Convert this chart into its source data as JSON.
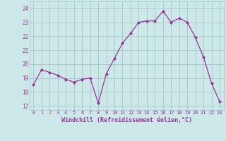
{
  "x": [
    0,
    1,
    2,
    3,
    4,
    5,
    6,
    7,
    8,
    9,
    10,
    11,
    12,
    13,
    14,
    15,
    16,
    17,
    18,
    19,
    20,
    21,
    22,
    23
  ],
  "y": [
    18.5,
    19.6,
    19.4,
    19.2,
    18.9,
    18.7,
    18.9,
    19.0,
    17.2,
    19.3,
    20.4,
    21.5,
    22.2,
    23.0,
    23.1,
    23.1,
    23.8,
    23.0,
    23.3,
    23.0,
    21.9,
    20.5,
    18.6,
    17.3
  ],
  "line_color": "#993399",
  "marker": "D",
  "marker_size": 2.0,
  "bg_color": "#cce8e8",
  "grid_color": "#aacccc",
  "xlabel": "Windchill (Refroidissement éolien,°C)",
  "xlabel_color": "#993399",
  "tick_color": "#993399",
  "yticks": [
    17,
    18,
    19,
    20,
    21,
    22,
    23,
    24
  ],
  "xticks": [
    0,
    1,
    2,
    3,
    4,
    5,
    6,
    7,
    8,
    9,
    10,
    11,
    12,
    13,
    14,
    15,
    16,
    17,
    18,
    19,
    20,
    21,
    22,
    23
  ],
  "ylim": [
    16.7,
    24.5
  ],
  "xlim": [
    -0.5,
    23.5
  ],
  "linewidth": 0.9
}
